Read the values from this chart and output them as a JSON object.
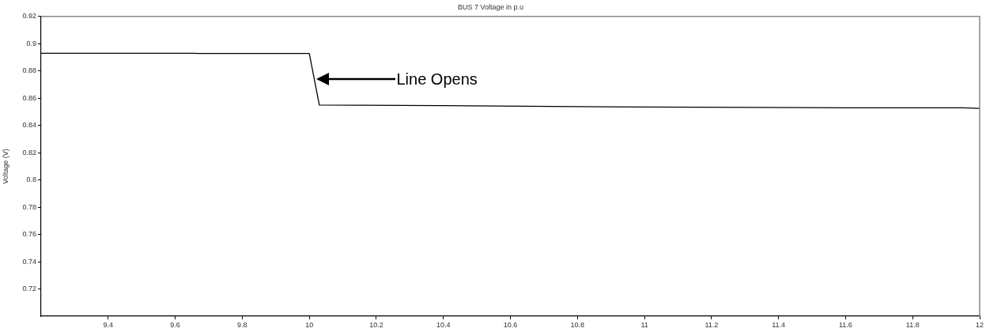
{
  "chart_data": {
    "type": "line",
    "title": "BUS 7 Voltage in p.u",
    "ylabel": "Voltage (V)",
    "series": [
      {
        "color": "#000000",
        "x": [
          9.2,
          9.65,
          9.67,
          10.0,
          10.03,
          10.4,
          11.0,
          11.6,
          11.95,
          12.0
        ],
        "values": [
          0.893,
          0.893,
          0.8928,
          0.8928,
          0.855,
          0.8545,
          0.8535,
          0.853,
          0.853,
          0.8525
        ]
      }
    ],
    "xlim": [
      9.2,
      12
    ],
    "xticks": [
      9.4,
      9.6,
      9.8,
      10,
      10.2,
      10.4,
      10.6,
      10.8,
      11,
      11.2,
      11.4,
      11.6,
      11.8,
      12
    ],
    "ylim": [
      0.7,
      0.92
    ],
    "yticks": [
      0.72,
      0.74,
      0.76,
      0.78,
      0.8,
      0.82,
      0.84,
      0.86,
      0.88,
      0.9,
      0.92
    ],
    "annotations": [
      "Line Opens"
    ],
    "grid": false,
    "legend": false,
    "marker": "none",
    "line_style": "solid"
  }
}
